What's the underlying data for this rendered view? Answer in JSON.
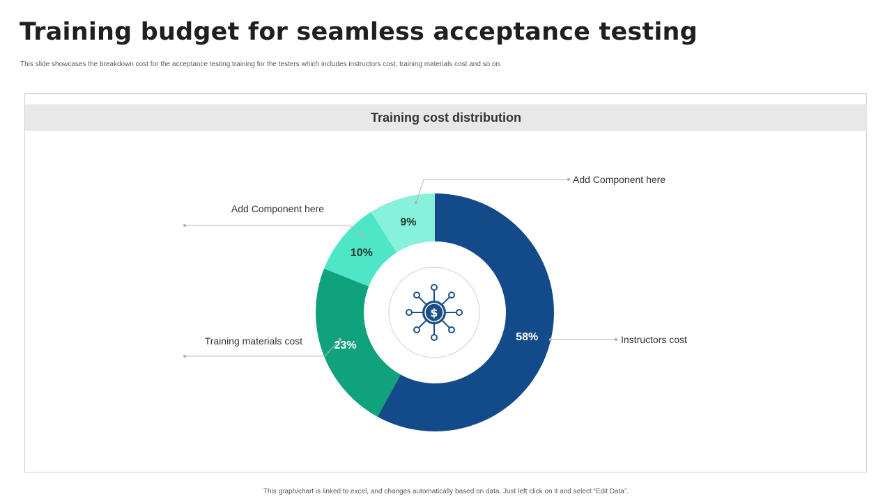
{
  "slide": {
    "title": "Training budget for seamless acceptance testing",
    "subtitle": "This slide showcases the breakdown cost for the acceptance testing training for the testers which includes instructors cost, training materials cost and so on.",
    "panel_title": "Training cost distribution",
    "footer": "This graph/chart is linked to excel, and changes automatically based on data. Just left click on it and select “Edit Data”."
  },
  "chart_data": {
    "type": "pie",
    "donut": true,
    "title": "Training cost distribution",
    "center_icon": "dollar-network-icon",
    "slices": [
      {
        "label": "Instructors cost",
        "value": 58,
        "display": "58%",
        "color": "#134b8a",
        "label_color": "#ffffff"
      },
      {
        "label": "Training materials cost",
        "value": 23,
        "display": "23%",
        "color": "#0fa27c",
        "label_color": "#ffffff"
      },
      {
        "label": "Add Component here",
        "value": 10,
        "display": "10%",
        "color": "#4ee6c6",
        "label_color": "#1f3b33"
      },
      {
        "label": "Add Component here",
        "value": 9,
        "display": "9%",
        "color": "#88f1dc",
        "label_color": "#1f3b33"
      }
    ]
  }
}
